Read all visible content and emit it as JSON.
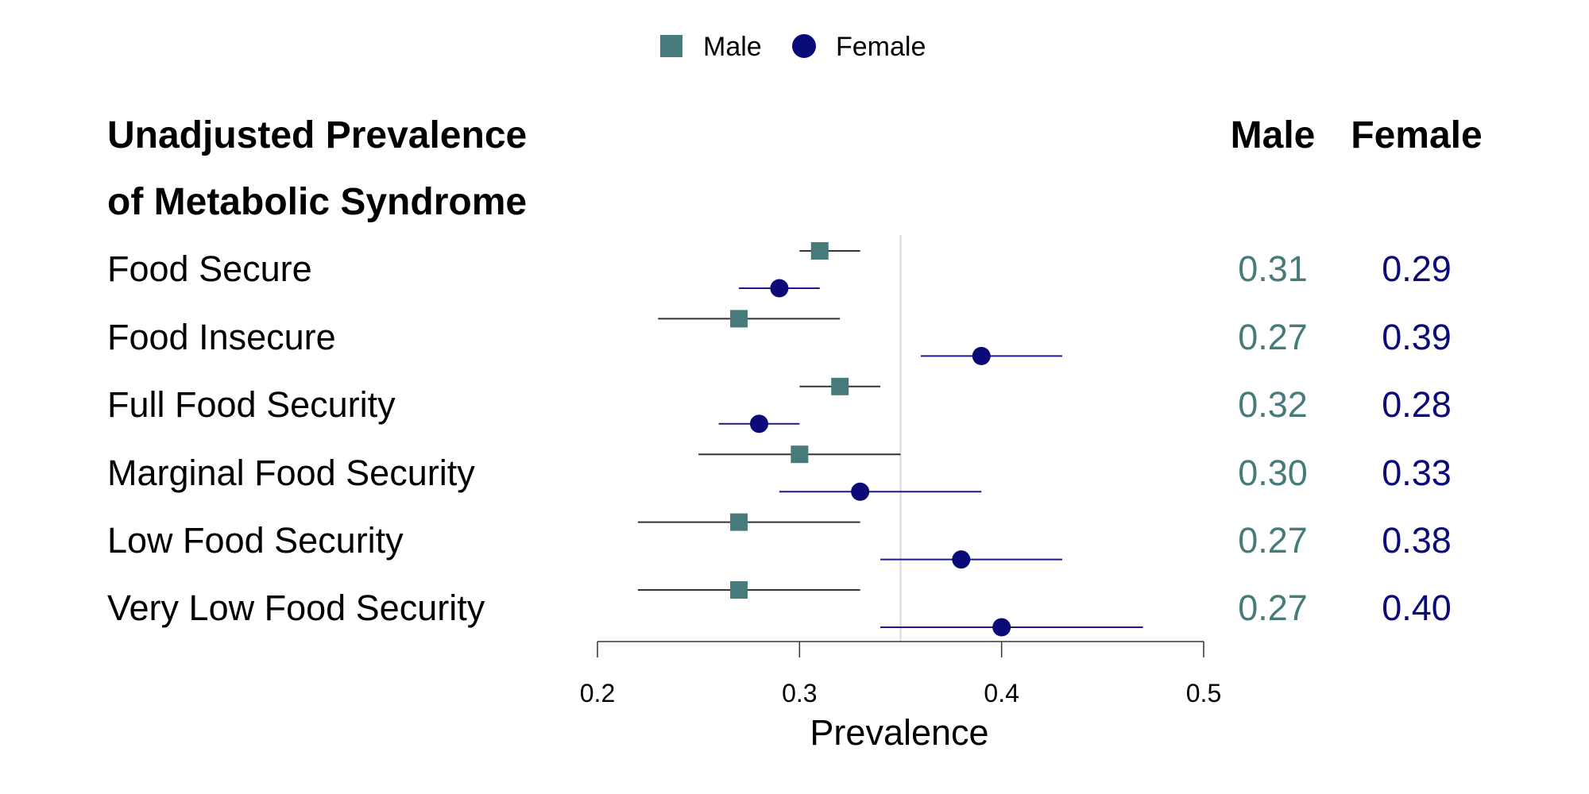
{
  "chart_data": {
    "type": "forest",
    "title_lines": [
      "Unadjusted Prevalence",
      "of Metabolic Syndrome"
    ],
    "xlabel": "Prevalence",
    "xlim": [
      0.2,
      0.5
    ],
    "xticks": [
      "0.2",
      "0.3",
      "0.4",
      "0.5"
    ],
    "xtick_values": [
      0.2,
      0.3,
      0.4,
      0.5
    ],
    "reference_line": 0.35,
    "legend": {
      "position": "top-center",
      "entries": [
        {
          "label": "Male",
          "marker": "square"
        },
        {
          "label": "Female",
          "marker": "circle"
        }
      ]
    },
    "column_headers": [
      "Male",
      "Female"
    ],
    "categories": [
      "Food Secure",
      "Food Insecure",
      "Full Food Security",
      "Marginal Food Security",
      "Low Food Security",
      "Very Low Food Security"
    ],
    "series": [
      {
        "name": "Male",
        "marker": "square",
        "color": "#467A7B",
        "ci_color": "#333333",
        "values": [
          0.31,
          0.27,
          0.32,
          0.3,
          0.27,
          0.27
        ],
        "labels": [
          "0.31",
          "0.27",
          "0.32",
          "0.30",
          "0.27",
          "0.27"
        ],
        "lower": [
          0.3,
          0.23,
          0.3,
          0.25,
          0.22,
          0.22
        ],
        "upper": [
          0.33,
          0.32,
          0.34,
          0.35,
          0.33,
          0.33
        ]
      },
      {
        "name": "Female",
        "marker": "circle",
        "color": "#0A0A78",
        "ci_color": "#1A1A8C",
        "values": [
          0.29,
          0.39,
          0.28,
          0.33,
          0.38,
          0.4
        ],
        "labels": [
          "0.29",
          "0.39",
          "0.28",
          "0.33",
          "0.38",
          "0.40"
        ],
        "lower": [
          0.27,
          0.36,
          0.26,
          0.29,
          0.34,
          0.34
        ],
        "upper": [
          0.31,
          0.43,
          0.3,
          0.39,
          0.43,
          0.47
        ]
      }
    ]
  }
}
